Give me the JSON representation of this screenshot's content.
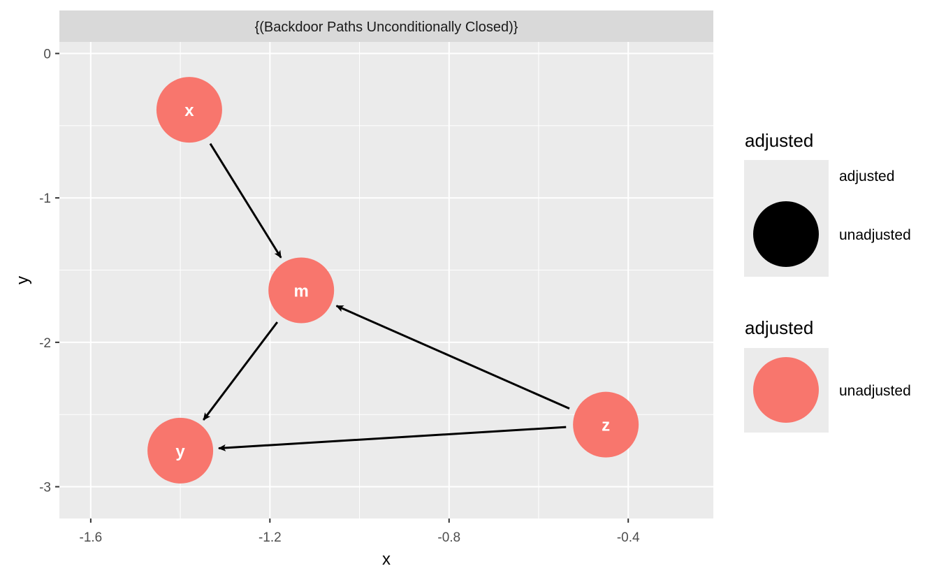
{
  "chart_data": {
    "type": "scatter",
    "subtype": "dag",
    "facet_title": "{(Backdoor Paths Unconditionally Closed)}",
    "xlabel": "x",
    "ylabel": "y",
    "xlim": [
      -1.67,
      -0.21
    ],
    "ylim": [
      -3.22,
      0.08
    ],
    "x_ticks": [
      -1.6,
      -1.2,
      -0.8,
      -0.4
    ],
    "x_tick_labels": [
      "-1.6",
      "-1.2",
      "-0.8",
      "-0.4"
    ],
    "y_ticks": [
      0,
      -1,
      -2,
      -3
    ],
    "y_tick_labels": [
      "0",
      "-1",
      "-2",
      "-3"
    ],
    "grid": true,
    "nodes": [
      {
        "name": "x",
        "x": -1.38,
        "y": -0.39,
        "adjusted": "unadjusted"
      },
      {
        "name": "m",
        "x": -1.13,
        "y": -1.64,
        "adjusted": "unadjusted"
      },
      {
        "name": "y",
        "x": -1.4,
        "y": -2.75,
        "adjusted": "unadjusted"
      },
      {
        "name": "z",
        "x": -0.45,
        "y": -2.57,
        "adjusted": "unadjusted"
      }
    ],
    "edges": [
      {
        "from": "x",
        "to": "m"
      },
      {
        "from": "m",
        "to": "y"
      },
      {
        "from": "z",
        "to": "m"
      },
      {
        "from": "z",
        "to": "y"
      }
    ],
    "legends": [
      {
        "title": "adjusted",
        "keys": [
          "adjusted",
          "unadjusted"
        ],
        "swatch_color": "#000000"
      },
      {
        "title": "adjusted",
        "keys": [
          "unadjusted"
        ],
        "swatch_color": "#F8766D"
      }
    ],
    "legend_position": "right"
  },
  "colors": {
    "panel_background": "#EBEBEB",
    "grid_line": "#FFFFFF",
    "strip_background": "#D9D9D9",
    "unadjusted": "#F8766D",
    "adjusted": "#000000",
    "edge": "#000000"
  }
}
